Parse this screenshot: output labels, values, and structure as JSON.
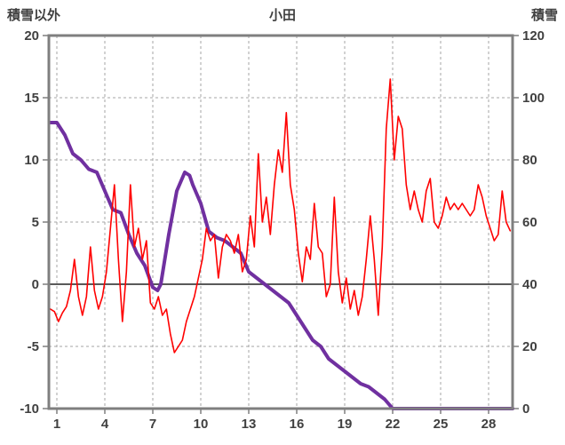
{
  "chart_data": {
    "type": "line",
    "title": "小田",
    "left_axis": {
      "label": "積雪以外",
      "min": -10,
      "max": 20,
      "ticks": [
        20,
        15,
        10,
        5,
        0,
        -5,
        -10
      ]
    },
    "right_axis": {
      "label": "積雪",
      "min": 0,
      "max": 120,
      "ticks": [
        120,
        100,
        80,
        60,
        40,
        20,
        0
      ]
    },
    "x_axis": {
      "min": 0.5,
      "max": 29.5,
      "ticks": [
        1,
        4,
        7,
        10,
        13,
        16,
        19,
        22,
        25,
        28
      ]
    },
    "grid": {
      "color": "#a6a6a6",
      "dash": "3,3"
    },
    "frame_color": "#7f7f7f",
    "zero_line": {
      "value": 0,
      "color": "#595959"
    },
    "label_color": "#404040",
    "series": [
      {
        "name": "purple-right-axis-series",
        "axis": "right",
        "color": "#7030a0",
        "width": 4,
        "x": [
          0.6,
          1,
          1.5,
          2,
          2.5,
          3,
          3.5,
          4,
          4.5,
          5,
          5.5,
          6,
          6.5,
          7,
          7.3,
          7.5,
          8,
          8.5,
          9,
          9.3,
          9.5,
          10,
          10.5,
          11,
          11.5,
          12,
          12.5,
          13,
          13.5,
          14,
          14.5,
          15,
          15.5,
          16,
          16.5,
          17,
          17.5,
          18,
          18.5,
          19,
          19.5,
          20,
          20.5,
          21,
          21.5,
          22,
          22.5,
          23,
          24,
          25,
          26,
          27,
          28,
          29,
          29.5
        ],
        "values": [
          92,
          92,
          88,
          82,
          80,
          77,
          76,
          70,
          64,
          63,
          56,
          50,
          46,
          39,
          38,
          40,
          56,
          70,
          76,
          75,
          72,
          66,
          57,
          55,
          54,
          52,
          50,
          44,
          42,
          40,
          38,
          36,
          34,
          30,
          26,
          22,
          20,
          16,
          14,
          12,
          10,
          8,
          7,
          5,
          3,
          0,
          0,
          0,
          0,
          0,
          0,
          0,
          0,
          0,
          0
        ]
      },
      {
        "name": "red-left-axis-series",
        "axis": "left",
        "color": "#ff0000",
        "width": 1.6,
        "x_start": 0.6,
        "x_step": 0.25,
        "values": [
          -2,
          -2.2,
          -3,
          -2.3,
          -1.8,
          -0.5,
          2,
          -1,
          -2.5,
          -1,
          3,
          -0.5,
          -2,
          -1,
          1,
          4.5,
          8,
          2,
          -3,
          1,
          8,
          3,
          4.5,
          2,
          3.5,
          -1.5,
          -2,
          -1,
          -2.5,
          -2,
          -4,
          -5.5,
          -5,
          -4.5,
          -3,
          -2,
          -1,
          0.5,
          2,
          4.5,
          3.5,
          4,
          0.5,
          3,
          4,
          3.5,
          2.5,
          4,
          1,
          2,
          5.5,
          3,
          10.5,
          5,
          7,
          4,
          8,
          10.8,
          9,
          13.8,
          8,
          6,
          2.5,
          0.2,
          3,
          2,
          6.5,
          3,
          2.5,
          -1,
          0,
          7,
          1,
          -1.5,
          0.5,
          -2,
          -0.5,
          -2.5,
          -1,
          2,
          5.5,
          2,
          -2.5,
          3,
          12.5,
          16.5,
          10,
          13.5,
          12.5,
          8,
          6,
          7.5,
          6,
          5,
          7.5,
          8.5,
          5,
          4.5,
          5.5,
          7,
          6,
          6.5,
          6,
          6.5,
          6,
          5.5,
          6,
          8,
          7,
          5.5,
          4.5,
          3.5,
          4,
          7.5,
          5,
          4.3
        ]
      }
    ]
  }
}
